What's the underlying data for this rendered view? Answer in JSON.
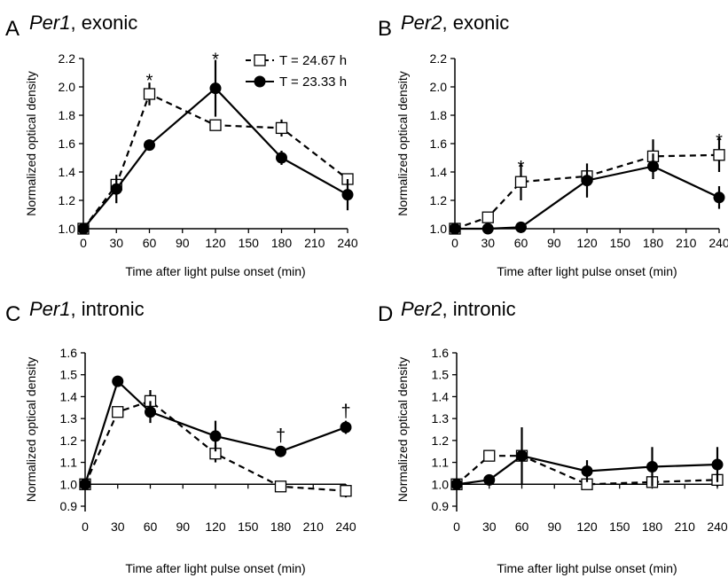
{
  "colors": {
    "ink": "#000000",
    "background": "#ffffff",
    "open_marker_fill": "#ffffff"
  },
  "legend": {
    "placement": "top-right of panel A",
    "entries": [
      {
        "label": "T = 24.67 h",
        "marker": "open-square",
        "line": "dashed"
      },
      {
        "label": "T = 23.33 h",
        "marker": "filled-circle",
        "line": "solid"
      }
    ]
  },
  "chart_data": [
    {
      "type": "line",
      "panel": "A",
      "title_gene": "Per1",
      "title_rest": ", exonic",
      "xlabel": "Time after light pulse onset (min)",
      "ylabel": "Normalized optical density",
      "x": [
        0,
        30,
        60,
        120,
        180,
        240
      ],
      "xticks": [
        "0",
        "30",
        "60",
        "90",
        "120",
        "150",
        "180",
        "210",
        "240"
      ],
      "xtick_values": [
        0,
        30,
        60,
        90,
        120,
        150,
        180,
        210,
        240
      ],
      "xlim": [
        0,
        240
      ],
      "yticks": [
        "1.0",
        "1.2",
        "1.4",
        "1.6",
        "1.8",
        "2.0",
        "2.2"
      ],
      "ytick_values": [
        1.0,
        1.2,
        1.4,
        1.6,
        1.8,
        2.0,
        2.2
      ],
      "ylim": [
        1.0,
        2.2
      ],
      "baseline": 1.0,
      "series": [
        {
          "name": "T = 24.67 h",
          "marker": "open-square",
          "line": "dashed",
          "values": [
            1.0,
            1.31,
            1.95,
            1.73,
            1.71,
            1.35
          ],
          "errors": [
            0,
            0.03,
            0.08,
            0.02,
            0.06,
            0.04
          ]
        },
        {
          "name": "T = 23.33 h",
          "marker": "filled-circle",
          "line": "solid",
          "values": [
            1.0,
            1.28,
            1.59,
            1.99,
            1.5,
            1.24
          ],
          "errors": [
            0,
            0.1,
            0.02,
            0.2,
            0.05,
            0.11
          ]
        }
      ],
      "annotations": [
        {
          "text": "*",
          "x": 60,
          "y": 2.09
        },
        {
          "text": "*",
          "x": 120,
          "y": 2.24
        }
      ]
    },
    {
      "type": "line",
      "panel": "B",
      "title_gene": "Per2",
      "title_rest": ", exonic",
      "xlabel": "Time after light pulse onset (min)",
      "ylabel": "Normalized optical density",
      "x": [
        0,
        30,
        60,
        120,
        180,
        240
      ],
      "xticks": [
        "0",
        "30",
        "60",
        "90",
        "120",
        "150",
        "180",
        "210",
        "240"
      ],
      "xtick_values": [
        0,
        30,
        60,
        90,
        120,
        150,
        180,
        210,
        240
      ],
      "xlim": [
        0,
        240
      ],
      "yticks": [
        "1.0",
        "1.2",
        "1.4",
        "1.6",
        "1.8",
        "2.0",
        "2.2"
      ],
      "ytick_values": [
        1.0,
        1.2,
        1.4,
        1.6,
        1.8,
        2.0,
        2.2
      ],
      "ylim": [
        1.0,
        2.2
      ],
      "baseline": 1.0,
      "series": [
        {
          "name": "T = 24.67 h",
          "marker": "open-square",
          "line": "dashed",
          "values": [
            1.0,
            1.08,
            1.33,
            1.37,
            1.51,
            1.52
          ],
          "errors": [
            0,
            0.02,
            0.13,
            0.04,
            0.12,
            0.12
          ]
        },
        {
          "name": "T = 23.33 h",
          "marker": "filled-circle",
          "line": "solid",
          "values": [
            1.0,
            1.0,
            1.01,
            1.34,
            1.44,
            1.22
          ],
          "errors": [
            0,
            0.01,
            0.02,
            0.12,
            0.09,
            0.08
          ]
        }
      ],
      "annotations": [
        {
          "text": "*",
          "x": 60,
          "y": 1.48
        },
        {
          "text": "*",
          "x": 240,
          "y": 1.67
        }
      ]
    },
    {
      "type": "line",
      "panel": "C",
      "title_gene": "Per1",
      "title_rest": ", intronic",
      "xlabel": "Time after light pulse onset (min)",
      "ylabel": "Normalized optical density",
      "x": [
        0,
        30,
        60,
        120,
        180,
        240
      ],
      "xticks": [
        "0",
        "30",
        "60",
        "90",
        "120",
        "150",
        "180",
        "210",
        "240"
      ],
      "xtick_values": [
        0,
        30,
        60,
        90,
        120,
        150,
        180,
        210,
        240
      ],
      "xlim": [
        0,
        240
      ],
      "yticks": [
        "0.9",
        "1.0",
        "1.1",
        "1.2",
        "1.3",
        "1.4",
        "1.5",
        "1.6"
      ],
      "ytick_values": [
        0.9,
        1.0,
        1.1,
        1.2,
        1.3,
        1.4,
        1.5,
        1.6
      ],
      "ylim": [
        0.9,
        1.6
      ],
      "baseline": 1.0,
      "series": [
        {
          "name": "T = 24.67 h",
          "marker": "open-square",
          "line": "dashed",
          "values": [
            1.0,
            1.33,
            1.38,
            1.14,
            0.99,
            0.97
          ],
          "errors": [
            0,
            0.02,
            0.05,
            0.04,
            0.02,
            0.03
          ]
        },
        {
          "name": "T = 23.33 h",
          "marker": "filled-circle",
          "line": "solid",
          "values": [
            1.0,
            1.47,
            1.33,
            1.22,
            1.15,
            1.26
          ],
          "errors": [
            0,
            0.02,
            0.05,
            0.07,
            0.02,
            0.03
          ]
        }
      ],
      "annotations": [
        {
          "text": "†",
          "x": 180,
          "y": 1.22
        },
        {
          "text": "†",
          "x": 240,
          "y": 1.33
        }
      ]
    },
    {
      "type": "line",
      "panel": "D",
      "title_gene": "Per2",
      "title_rest": ", intronic",
      "xlabel": "Time after light pulse onset (min)",
      "ylabel": "Normalized optical density",
      "x": [
        0,
        30,
        60,
        120,
        180,
        240
      ],
      "xticks": [
        "0",
        "30",
        "60",
        "90",
        "120",
        "150",
        "180",
        "210",
        "240"
      ],
      "xtick_values": [
        0,
        30,
        60,
        90,
        120,
        150,
        180,
        210,
        240
      ],
      "xlim": [
        0,
        240
      ],
      "yticks": [
        "0.9",
        "1.0",
        "1.1",
        "1.2",
        "1.3",
        "1.4",
        "1.5",
        "1.6"
      ],
      "ytick_values": [
        0.9,
        1.0,
        1.1,
        1.2,
        1.3,
        1.4,
        1.5,
        1.6
      ],
      "ylim": [
        0.9,
        1.6
      ],
      "baseline": 1.0,
      "series": [
        {
          "name": "T = 24.67 h",
          "marker": "open-square",
          "line": "dashed",
          "values": [
            1.0,
            1.13,
            1.13,
            1.0,
            1.01,
            1.02
          ],
          "errors": [
            0,
            0.01,
            0.01,
            0.02,
            0.02,
            0.03
          ]
        },
        {
          "name": "T = 23.33 h",
          "marker": "filled-circle",
          "line": "solid",
          "values": [
            1.0,
            1.02,
            1.13,
            1.06,
            1.08,
            1.09
          ],
          "errors": [
            0,
            0.02,
            0.13,
            0.05,
            0.09,
            0.08
          ]
        }
      ],
      "annotations": []
    }
  ]
}
